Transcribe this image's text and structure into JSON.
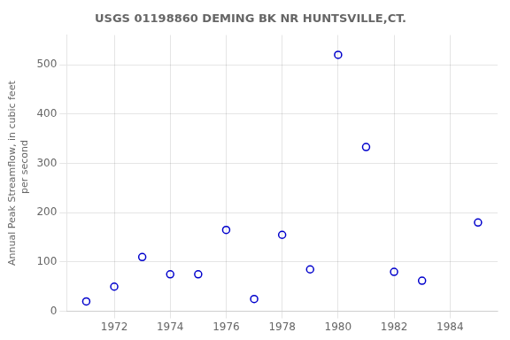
{
  "chart_data": {
    "type": "scatter",
    "title": "USGS 01198860 DEMING BK NR HUNTSVILLE,CT.",
    "y_label": "Annual Peak Streamflow, in cubic feet\n    per second",
    "x": [
      1971,
      1972,
      1973,
      1974,
      1975,
      1976,
      1977,
      1978,
      1979,
      1980,
      1981,
      1982,
      1983,
      1985
    ],
    "values": [
      20,
      50,
      110,
      75,
      75,
      165,
      25,
      155,
      85,
      520,
      333,
      80,
      62,
      180
    ],
    "color": "#0000cc",
    "marker": "open_circle",
    "xlim": [
      1970.3,
      1985.7
    ],
    "ylim": [
      0,
      560
    ],
    "xticks": [
      1972,
      1974,
      1976,
      1978,
      1980,
      1982,
      1984
    ],
    "yticks": [
      0,
      100,
      200,
      300,
      400,
      500
    ],
    "grid": true
  }
}
